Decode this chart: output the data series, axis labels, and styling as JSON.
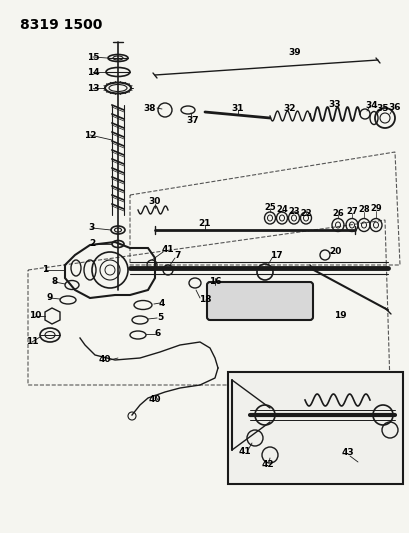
{
  "title": "8319 1500",
  "bg_color": "#f5f5f0",
  "line_color": "#1a1a1a",
  "title_fontsize": 10,
  "label_fontsize": 6.5,
  "fig_width": 4.1,
  "fig_height": 5.33,
  "dpi": 100
}
